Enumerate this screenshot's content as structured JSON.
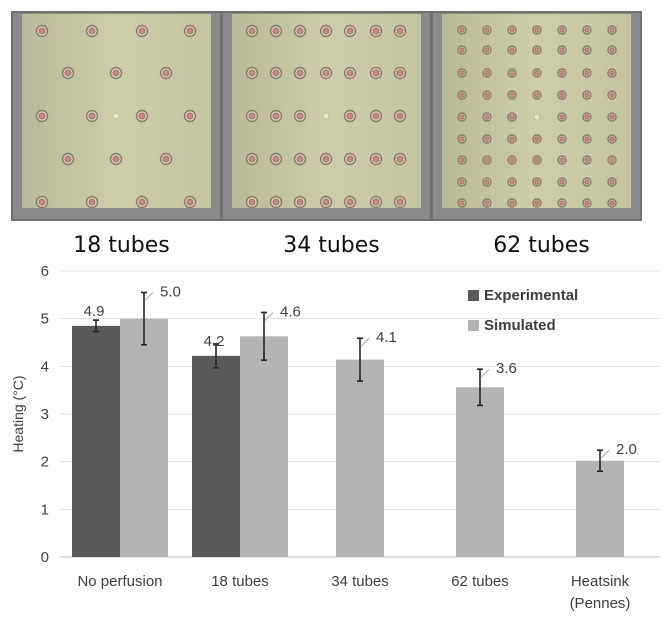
{
  "panels": [
    {
      "label": "18 tubes",
      "grid": "staggered"
    },
    {
      "label": "34 tubes",
      "grid": "7x5"
    },
    {
      "label": "62 tubes",
      "grid": "7x9"
    }
  ],
  "colors": {
    "experimental": "#595959",
    "simulated": "#b3b3b3",
    "panel_border": "#707070",
    "panel_fill": "#c9c9a6",
    "tube_ring": "#8a7a6a",
    "tube_core": "#c58a80"
  },
  "chart_data": {
    "type": "bar",
    "title": "",
    "xlabel": "",
    "ylabel": "Heating (°C)",
    "ylim": [
      0,
      6
    ],
    "yticks": [
      "0",
      "1",
      "2",
      "3",
      "4",
      "5",
      "6"
    ],
    "grid": true,
    "legend_position": "top-right",
    "categories": [
      [
        "No perfusion"
      ],
      [
        "18 tubes"
      ],
      [
        "34 tubes"
      ],
      [
        "62 tubes"
      ],
      [
        "Heatsink",
        "(Pennes)"
      ]
    ],
    "series": [
      {
        "name": "Experimental",
        "values": [
          4.85,
          4.22,
          null,
          null,
          null
        ],
        "errors": [
          0.12,
          0.25,
          null,
          null,
          null
        ],
        "labels": [
          "4.9",
          "4.2",
          "",
          "",
          ""
        ]
      },
      {
        "name": "Simulated",
        "values": [
          5.0,
          4.63,
          4.14,
          3.56,
          2.02
        ],
        "errors": [
          0.55,
          0.5,
          0.45,
          0.38,
          0.22
        ],
        "labels": [
          "5.0",
          "4.6",
          "4.1",
          "3.6",
          "2.0"
        ]
      }
    ]
  }
}
